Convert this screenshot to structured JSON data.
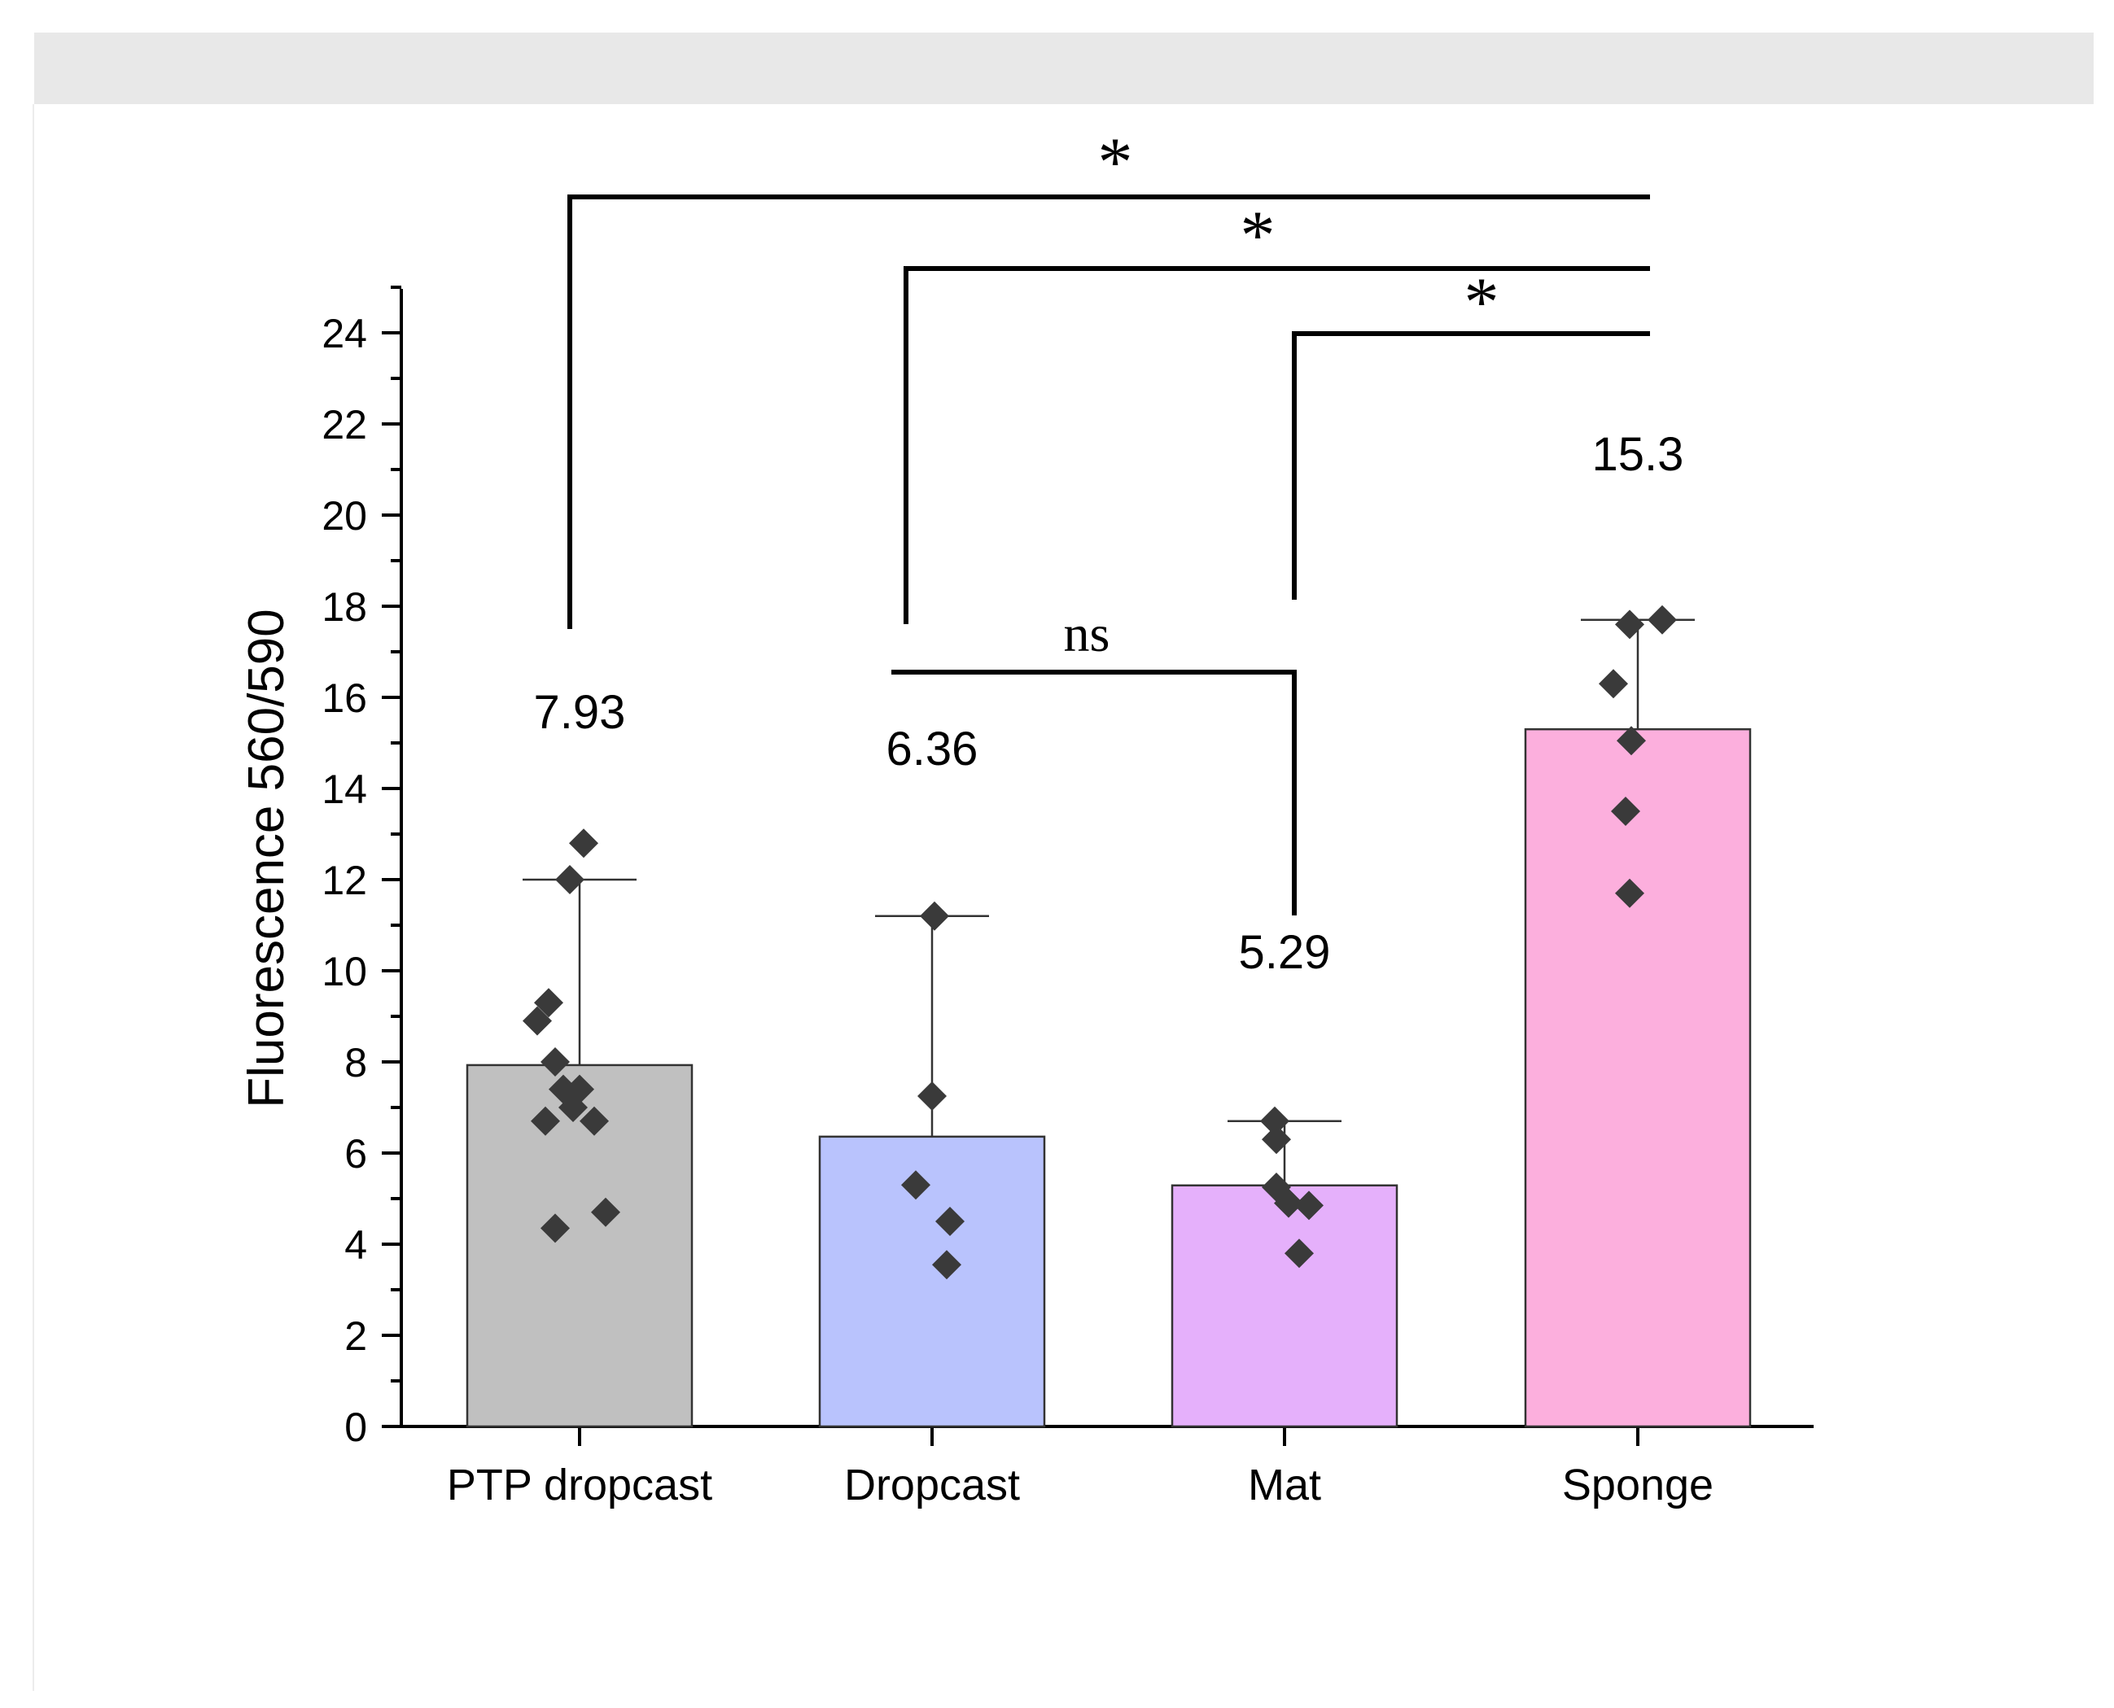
{
  "chart_data": {
    "type": "bar",
    "title": "",
    "xlabel": "",
    "ylabel": "Fluorescence 560/590",
    "ylim": [
      0,
      25
    ],
    "yticks": [
      0,
      2,
      4,
      6,
      8,
      10,
      12,
      14,
      16,
      18,
      20,
      22,
      24
    ],
    "grid": false,
    "categories": [
      "PTP dropcast",
      "Dropcast",
      "Mat",
      "Sponge"
    ],
    "values": [
      7.93,
      6.36,
      5.29,
      15.3
    ],
    "data_labels": [
      "7.93",
      "6.36",
      "5.29",
      "15.3"
    ],
    "error_upper": [
      12.0,
      11.2,
      6.7,
      17.7
    ],
    "colors": [
      "#c0c0c0",
      "#b9c3fd",
      "#e5b0fb",
      "#fcafdd"
    ],
    "points": [
      [
        12.8,
        12.0,
        9.3,
        8.9,
        8.0,
        7.4,
        7.4,
        7.0,
        6.7,
        6.7,
        4.7,
        4.35
      ],
      [
        11.2,
        7.25,
        5.3,
        4.5,
        3.55
      ],
      [
        6.7,
        6.3,
        5.25,
        4.9,
        4.85,
        3.8
      ],
      [
        17.7,
        17.6,
        16.3,
        15.05,
        13.5,
        11.7
      ]
    ],
    "point_color": "#3a3a3a",
    "significance": [
      {
        "label": "*",
        "from": "PTP dropcast",
        "to": "Sponge"
      },
      {
        "label": "*",
        "from": "Dropcast",
        "to": "Sponge"
      },
      {
        "label": "*",
        "from": "Mat",
        "to": "Sponge"
      },
      {
        "label": "ns",
        "from": "Dropcast",
        "to": "Mat"
      }
    ]
  }
}
